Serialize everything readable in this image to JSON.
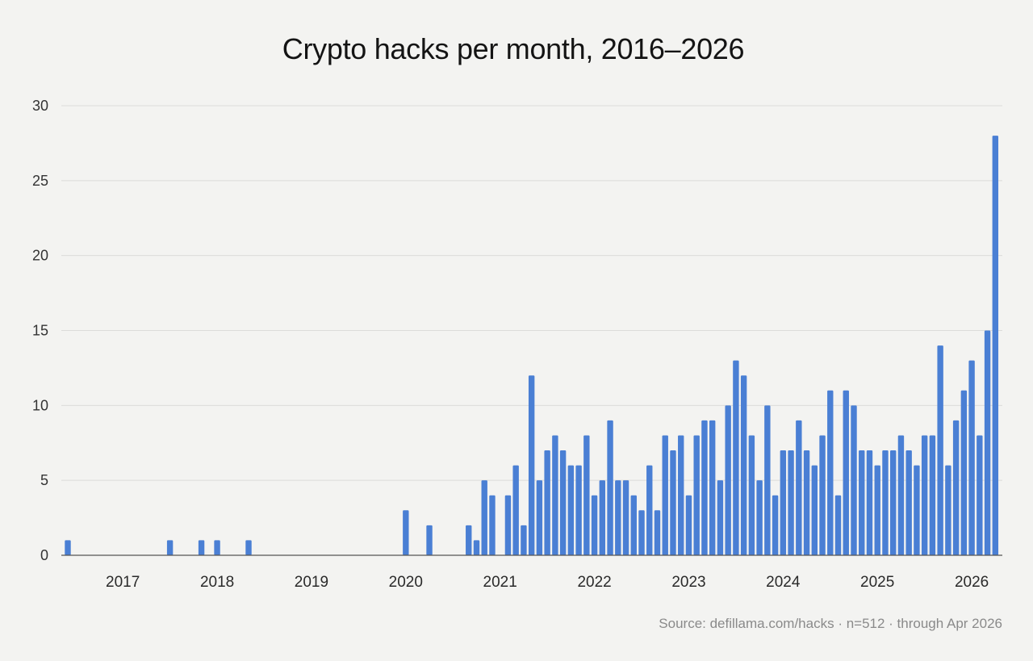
{
  "chart_data": {
    "type": "bar",
    "title": "Crypto hacks per month, 2016–2026",
    "xlabel": "",
    "ylabel": "",
    "ylim": [
      0,
      30
    ],
    "yticks": [
      "0",
      "5",
      "10",
      "15",
      "20",
      "25",
      "30"
    ],
    "xticks": [
      "2017",
      "2018",
      "2019",
      "2020",
      "2021",
      "2022",
      "2023",
      "2024",
      "2025",
      "2026"
    ],
    "grid": true,
    "bar_color": "#4a7fd4",
    "months": [
      "2016-06",
      "2016-07",
      "2016-08",
      "2016-09",
      "2016-10",
      "2016-11",
      "2016-12",
      "2017-01",
      "2017-02",
      "2017-03",
      "2017-04",
      "2017-05",
      "2017-06",
      "2017-07",
      "2017-08",
      "2017-09",
      "2017-10",
      "2017-11",
      "2017-12",
      "2018-01",
      "2018-02",
      "2018-03",
      "2018-04",
      "2018-05",
      "2018-06",
      "2018-07",
      "2018-08",
      "2018-09",
      "2018-10",
      "2018-11",
      "2018-12",
      "2019-01",
      "2019-02",
      "2019-03",
      "2019-04",
      "2019-05",
      "2019-06",
      "2019-07",
      "2019-08",
      "2019-09",
      "2019-10",
      "2019-11",
      "2019-12",
      "2020-01",
      "2020-02",
      "2020-03",
      "2020-04",
      "2020-05",
      "2020-06",
      "2020-07",
      "2020-08",
      "2020-09",
      "2020-10",
      "2020-11",
      "2020-12",
      "2021-01",
      "2021-02",
      "2021-03",
      "2021-04",
      "2021-05",
      "2021-06",
      "2021-07",
      "2021-08",
      "2021-09",
      "2021-10",
      "2021-11",
      "2021-12",
      "2022-01",
      "2022-02",
      "2022-03",
      "2022-04",
      "2022-05",
      "2022-06",
      "2022-07",
      "2022-08",
      "2022-09",
      "2022-10",
      "2022-11",
      "2022-12",
      "2023-01",
      "2023-02",
      "2023-03",
      "2023-04",
      "2023-05",
      "2023-06",
      "2023-07",
      "2023-08",
      "2023-09",
      "2023-10",
      "2023-11",
      "2023-12",
      "2024-01",
      "2024-02",
      "2024-03",
      "2024-04",
      "2024-05",
      "2024-06",
      "2024-07",
      "2024-08",
      "2024-09",
      "2024-10",
      "2024-11",
      "2024-12",
      "2025-01",
      "2025-02",
      "2025-03",
      "2025-04",
      "2025-05",
      "2025-06",
      "2025-07",
      "2025-08",
      "2025-09",
      "2025-10",
      "2025-11",
      "2025-12",
      "2026-01",
      "2026-02",
      "2026-03",
      "2026-04"
    ],
    "values": [
      1,
      0,
      0,
      0,
      0,
      0,
      0,
      0,
      0,
      0,
      0,
      0,
      0,
      1,
      0,
      0,
      0,
      1,
      0,
      1,
      0,
      0,
      0,
      1,
      0,
      0,
      0,
      0,
      0,
      0,
      0,
      0,
      0,
      0,
      0,
      0,
      0,
      0,
      0,
      0,
      0,
      0,
      0,
      3,
      0,
      0,
      2,
      0,
      0,
      0,
      0,
      2,
      1,
      5,
      4,
      0,
      4,
      6,
      2,
      12,
      5,
      7,
      8,
      7,
      6,
      6,
      8,
      4,
      5,
      9,
      5,
      5,
      4,
      3,
      6,
      3,
      8,
      7,
      8,
      4,
      8,
      9,
      9,
      5,
      10,
      13,
      12,
      8,
      5,
      10,
      4,
      7,
      7,
      9,
      7,
      6,
      8,
      11,
      4,
      11,
      10,
      7,
      7,
      6,
      7,
      7,
      8,
      7,
      6,
      8,
      8,
      14,
      6,
      9,
      11,
      13,
      8,
      15,
      28
    ]
  },
  "source_note": "Source: defillama.com/hacks · n=512 · through Apr 2026"
}
